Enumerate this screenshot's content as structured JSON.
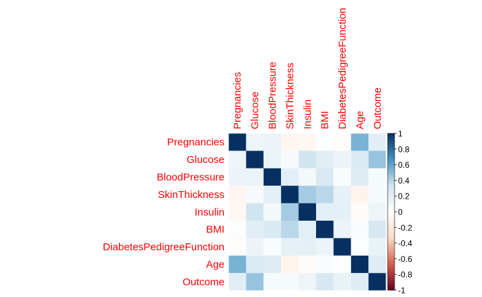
{
  "chart_data": {
    "type": "heatmap",
    "variables": [
      "Pregnancies",
      "Glucose",
      "BloodPressure",
      "SkinThickness",
      "Insulin",
      "BMI",
      "DiabetesPedigreeFunction",
      "Age",
      "Outcome"
    ],
    "matrix": [
      [
        1.0,
        0.13,
        0.14,
        -0.08,
        -0.07,
        0.02,
        -0.03,
        0.54,
        0.22
      ],
      [
        0.13,
        1.0,
        0.15,
        0.06,
        0.33,
        0.22,
        0.14,
        0.26,
        0.47
      ],
      [
        0.14,
        0.15,
        1.0,
        0.21,
        0.09,
        0.28,
        0.04,
        0.24,
        0.07
      ],
      [
        -0.08,
        0.06,
        0.21,
        1.0,
        0.44,
        0.39,
        0.18,
        -0.11,
        0.07
      ],
      [
        -0.07,
        0.33,
        0.09,
        0.44,
        1.0,
        0.2,
        0.19,
        -0.04,
        0.13
      ],
      [
        0.02,
        0.22,
        0.28,
        0.39,
        0.2,
        1.0,
        0.14,
        0.04,
        0.29
      ],
      [
        -0.03,
        0.14,
        0.04,
        0.18,
        0.19,
        0.14,
        1.0,
        0.03,
        0.17
      ],
      [
        0.54,
        0.26,
        0.24,
        -0.11,
        -0.04,
        0.04,
        0.03,
        1.0,
        0.24
      ],
      [
        0.22,
        0.47,
        0.07,
        0.07,
        0.13,
        0.29,
        0.17,
        0.24,
        1.0
      ]
    ],
    "colorbar": {
      "range": [
        -1,
        1
      ],
      "ticks": [
        "1",
        "0.8",
        "0.6",
        "0.4",
        "0.2",
        "0",
        "-0.2",
        "-0.4",
        "-0.6",
        "-0.8",
        "-1"
      ]
    },
    "colors": {
      "label": "#ff0000",
      "neg_strong": "#67001f",
      "neg_mid": "#d6604d",
      "neg_light": "#fddbc7",
      "neutral": "#ffffff",
      "pos_light": "#d1e5f0",
      "pos_mid": "#4393c3",
      "pos_strong": "#053061"
    }
  }
}
